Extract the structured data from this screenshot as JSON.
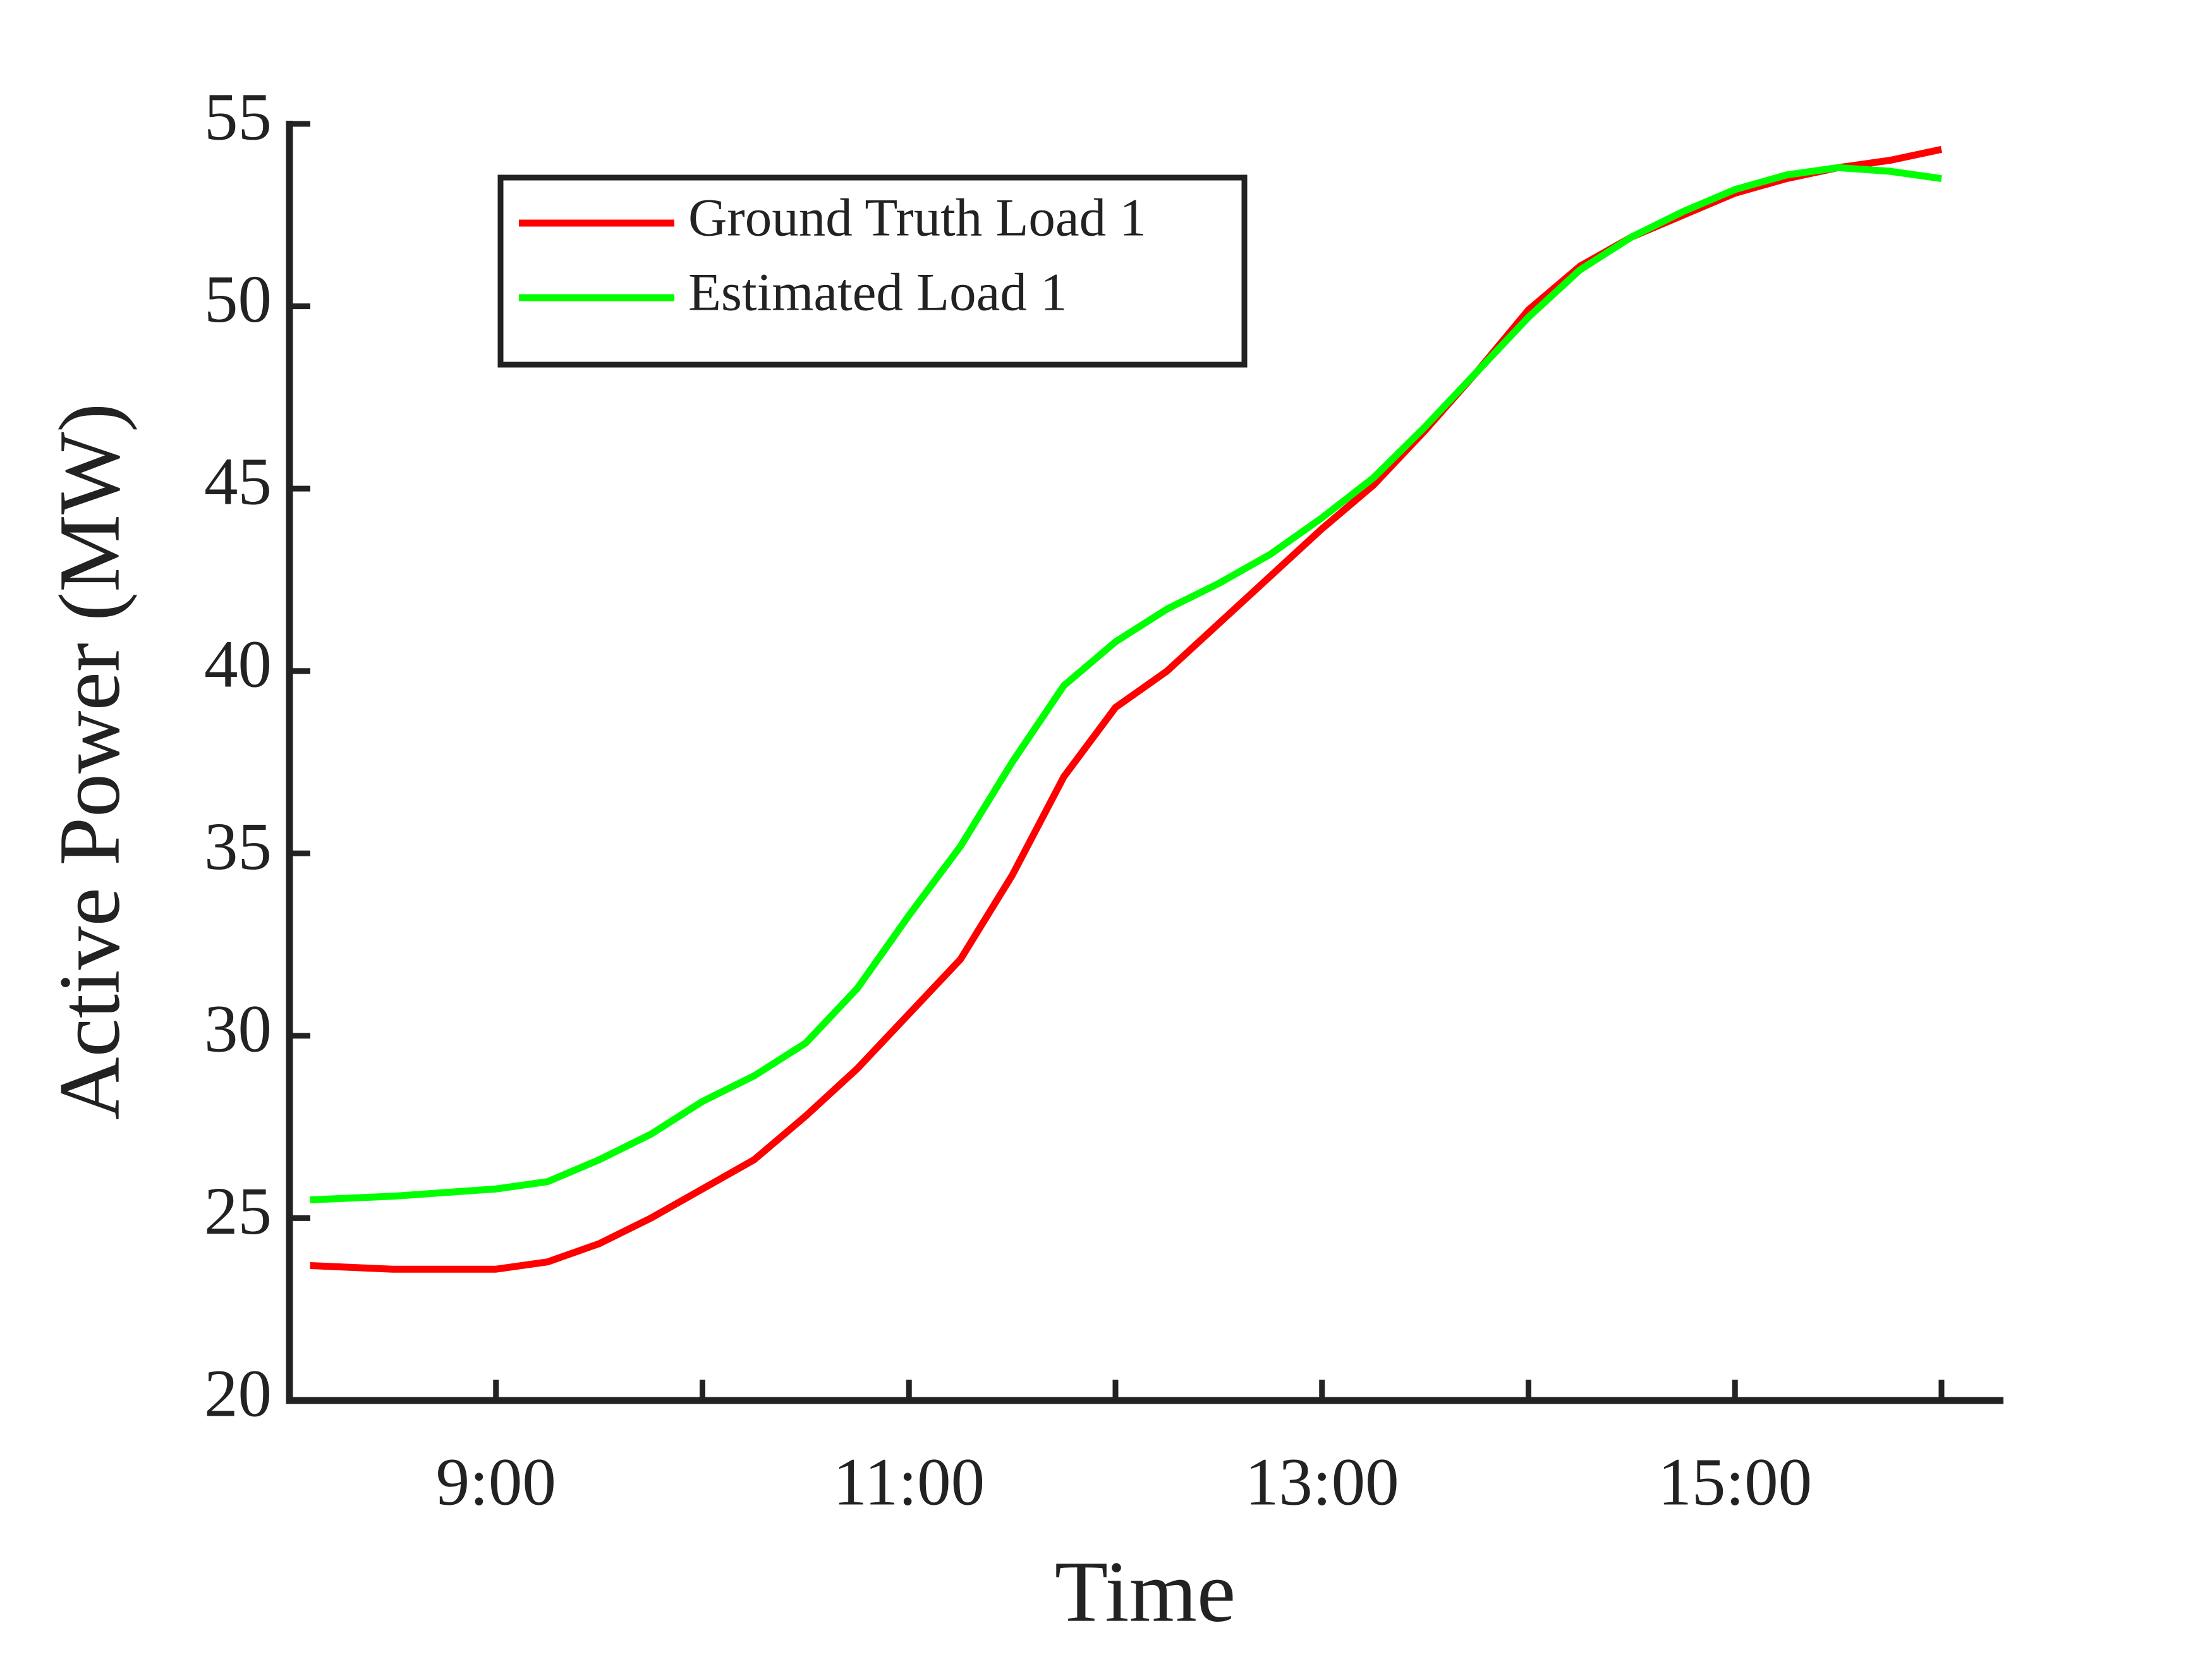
{
  "chart_data": {
    "type": "line",
    "xlabel": "Time",
    "ylabel": "Active Power (MW)",
    "x": [
      8.1,
      8.5,
      9.0,
      9.25,
      9.5,
      9.75,
      10.0,
      10.25,
      10.5,
      10.75,
      11.0,
      11.25,
      11.5,
      11.75,
      12.0,
      12.25,
      12.5,
      12.75,
      13.0,
      13.25,
      13.5,
      13.75,
      14.0,
      14.25,
      14.5,
      14.75,
      15.0,
      15.25,
      15.5,
      15.75,
      16.0
    ],
    "series": [
      {
        "name": "Ground Truth Load 1",
        "color": "#ff0000",
        "values": [
          23.7,
          23.6,
          23.6,
          23.8,
          24.3,
          25.0,
          25.8,
          26.6,
          27.8,
          29.1,
          30.6,
          32.1,
          34.4,
          37.1,
          39.0,
          40.0,
          41.3,
          42.6,
          43.9,
          45.1,
          46.6,
          48.2,
          49.9,
          51.1,
          51.9,
          52.5,
          53.1,
          53.5,
          53.8,
          54.0,
          54.3
        ]
      },
      {
        "name": "Estimated Load 1",
        "color": "#00ff00",
        "values": [
          25.5,
          25.6,
          25.8,
          26.0,
          26.6,
          27.3,
          28.2,
          28.9,
          29.8,
          31.3,
          33.3,
          35.2,
          37.5,
          39.6,
          40.8,
          41.7,
          42.4,
          43.2,
          44.2,
          45.3,
          46.7,
          48.2,
          49.7,
          51.0,
          51.9,
          52.6,
          53.2,
          53.6,
          53.8,
          53.7,
          53.5
        ]
      }
    ],
    "xlim": [
      8,
      16.3
    ],
    "xticks": [
      {
        "value": 9,
        "label": "9:00"
      },
      {
        "value": 11,
        "label": "11:00"
      },
      {
        "value": 13,
        "label": "13:00"
      },
      {
        "value": 15,
        "label": "15:00"
      }
    ],
    "xminorticks": [
      10,
      12,
      14,
      16
    ],
    "ylim": [
      20,
      55
    ],
    "yticks": [
      20,
      25,
      30,
      35,
      40,
      45,
      50,
      55
    ],
    "grid": false,
    "legend": "upper left"
  }
}
